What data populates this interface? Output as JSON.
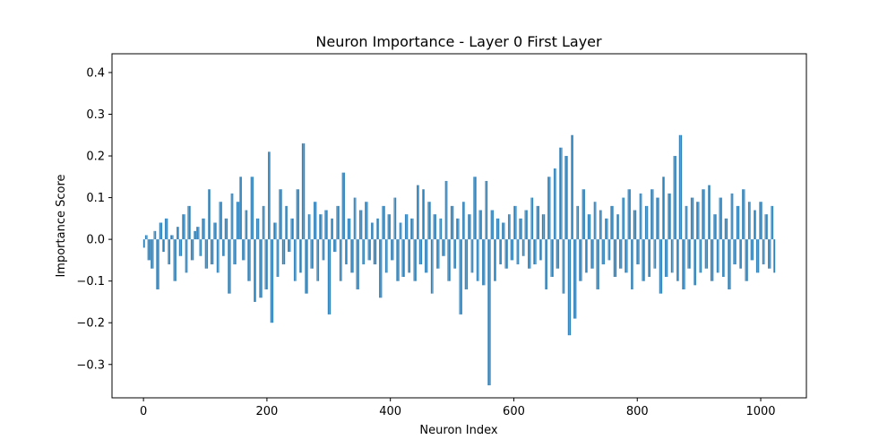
{
  "chart_data": {
    "type": "bar",
    "title": "Neuron Importance - Layer 0 First Layer",
    "xlabel": "Neuron Index",
    "ylabel": "Importance Score",
    "xlim": [
      -51,
      1074
    ],
    "ylim": [
      -0.38,
      0.445
    ],
    "xticks": [
      0,
      200,
      400,
      600,
      800,
      1000
    ],
    "xtick_labels": [
      "0",
      "200",
      "400",
      "600",
      "800",
      "1000"
    ],
    "yticks": [
      -0.3,
      -0.2,
      -0.1,
      0.0,
      0.1,
      0.2,
      0.3,
      0.4
    ],
    "ytick_labels": [
      "−0.3",
      "−0.2",
      "−0.1",
      "0.0",
      "0.1",
      "0.2",
      "0.3",
      "0.4"
    ],
    "grid": false,
    "bar_color": "#1f77b4",
    "num_bars": 1024,
    "x_start": 0,
    "x_step": 1,
    "sample_values": [
      -0.02,
      0.01,
      -0.05,
      -0.07,
      0.02,
      -0.12,
      0.04,
      -0.03,
      0.05,
      -0.06,
      0.01,
      -0.1,
      0.03,
      -0.04,
      0.06,
      -0.08,
      0.08,
      -0.05,
      0.02,
      0.03,
      -0.04,
      0.05,
      -0.07,
      0.12,
      -0.06,
      0.04,
      -0.08,
      0.09,
      -0.04,
      0.05,
      -0.13,
      0.11,
      -0.06,
      0.09,
      0.15,
      -0.05,
      0.07,
      -0.1,
      0.15,
      -0.15,
      0.05,
      -0.14,
      0.08,
      -0.12,
      0.21,
      -0.2,
      0.04,
      -0.09,
      0.12,
      -0.06,
      0.08,
      -0.03,
      0.05,
      -0.1,
      0.12,
      -0.08,
      0.23,
      -0.13,
      0.06,
      -0.07,
      0.09,
      -0.1,
      0.06,
      -0.05,
      0.07,
      -0.18,
      0.05,
      -0.03,
      0.08,
      -0.1,
      0.16,
      -0.06,
      0.05,
      -0.08,
      0.1,
      -0.12,
      0.07,
      -0.06,
      0.09,
      -0.05,
      0.04,
      -0.06,
      0.05,
      -0.14,
      0.08,
      -0.08,
      0.06,
      -0.05,
      0.1,
      -0.1,
      0.04,
      -0.09,
      0.06,
      -0.08,
      0.05,
      -0.1,
      0.13,
      -0.06,
      0.12,
      -0.08,
      0.09,
      -0.13,
      0.06,
      -0.07,
      0.05,
      -0.04,
      0.14,
      -0.1,
      0.08,
      -0.07,
      0.05,
      -0.18,
      0.09,
      -0.12,
      0.06,
      -0.08,
      0.15,
      -0.1,
      0.07,
      -0.11,
      0.14,
      -0.35,
      0.07,
      -0.1,
      0.05,
      -0.06,
      0.04,
      -0.07,
      0.06,
      -0.05,
      0.08,
      -0.06,
      0.05,
      -0.04,
      0.07,
      -0.07,
      0.1,
      -0.06,
      0.08,
      -0.05,
      0.06,
      -0.12,
      0.15,
      -0.09,
      0.17,
      -0.07,
      0.22,
      -0.13,
      0.2,
      -0.23,
      0.25,
      -0.19,
      0.08,
      -0.1,
      0.12,
      -0.08,
      0.06,
      -0.07,
      0.09,
      -0.12,
      0.07,
      -0.06,
      0.05,
      -0.05,
      0.08,
      -0.09,
      0.06,
      -0.07,
      0.1,
      -0.08,
      0.12,
      -0.12,
      0.07,
      -0.06,
      0.11,
      -0.1,
      0.08,
      -0.09,
      0.12,
      -0.07,
      0.1,
      -0.13,
      0.15,
      -0.09,
      0.11,
      -0.08,
      0.2,
      -0.1,
      0.25,
      -0.12,
      0.08,
      -0.07,
      0.1,
      -0.11,
      0.09,
      -0.08,
      0.12,
      -0.07,
      0.13,
      -0.1,
      0.06,
      -0.08,
      0.1,
      -0.09,
      0.05,
      -0.12,
      0.11,
      -0.06,
      0.08,
      -0.07,
      0.12,
      -0.1,
      0.09,
      -0.05,
      0.07,
      -0.08,
      0.09,
      -0.06,
      0.06,
      -0.07,
      0.08,
      -0.08
    ]
  }
}
